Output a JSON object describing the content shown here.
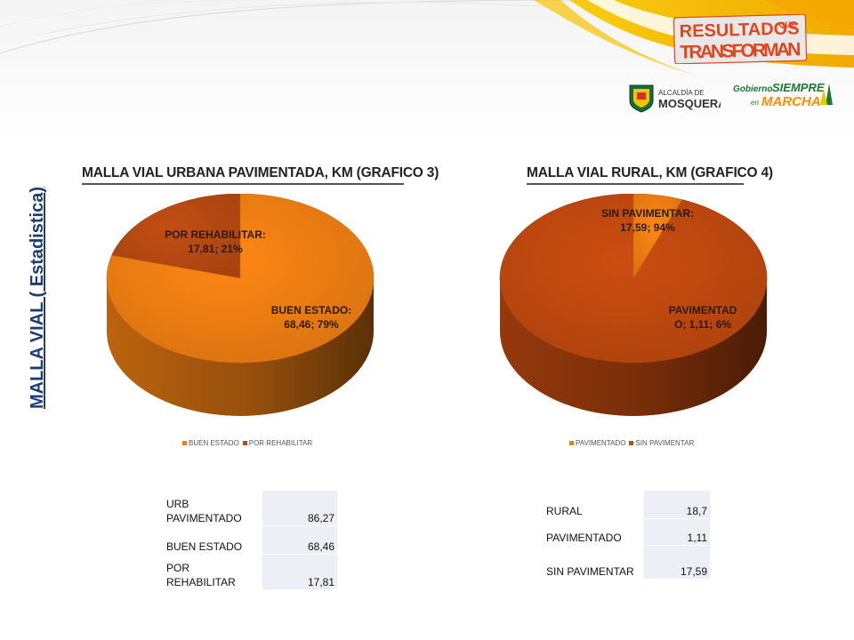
{
  "slide": {
    "side_title": "MALLA VIAL ( Estadistica)",
    "logo": {
      "brand_line1": "RESULTADOS",
      "brand_que": "QUE",
      "brand_line2": "TRANSFORMAN",
      "alcaldia_small": "ALCALDÍA DE",
      "alcaldia_name": "MOSQUERA",
      "gobierno": "Gobierno",
      "siempre": "SIEMPRE",
      "en": "en",
      "marcha": "MARCHA"
    },
    "colors": {
      "orange": "#f07f13",
      "orange_dark": "#c8550a",
      "rust": "#c0490f",
      "rust_dark": "#8c2f07",
      "title_blue": "#1f3c73",
      "yellow": "#f5c400"
    }
  },
  "chart_data": [
    {
      "type": "pie",
      "title": "MALLA VIAL URBANA PAVIMENTADA, KM (GRAFICO 3)",
      "categories": [
        "BUEN ESTADO",
        "POR REHABILITAR"
      ],
      "values": [
        68.46,
        17.81
      ],
      "percent": [
        79,
        21
      ],
      "data_labels": [
        {
          "line1": "BUEN ESTADO:",
          "line2": "68,46; 79%"
        },
        {
          "line1": "POR REHABILITAR:",
          "line2": "17,81; 21%"
        }
      ],
      "colors": [
        "#f07f13",
        "#b84a12"
      ],
      "legend": "bottom"
    },
    {
      "type": "pie",
      "title": "MALLA VIAL RURAL, KM (GRAFICO 4)",
      "categories": [
        "PAVIMENTADO",
        "SIN PAVIMENTAR"
      ],
      "values": [
        1.11,
        17.59
      ],
      "percent": [
        6,
        94
      ],
      "data_labels": [
        {
          "line1": "PAVIMENTAD",
          "line2": "O; 1,11; 6%"
        },
        {
          "line1": "SIN PAVIMENTAR:",
          "line2": "17,59; 94%"
        }
      ],
      "colors": [
        "#f07f13",
        "#c0490f"
      ],
      "legend": "bottom"
    },
    {
      "type": "table",
      "rows": [
        {
          "label": "URB PAVIMENTADO",
          "value": "86,27"
        },
        {
          "label": "BUEN ESTADO",
          "value": "68,46"
        },
        {
          "label": "POR REHABILITAR",
          "value": "17,81"
        }
      ]
    },
    {
      "type": "table",
      "rows": [
        {
          "label": "RURAL",
          "value": "18,7"
        },
        {
          "label": "PAVIMENTADO",
          "value": "1,11"
        },
        {
          "label": "SIN PAVIMENTAR",
          "value": "17,59"
        }
      ]
    }
  ]
}
